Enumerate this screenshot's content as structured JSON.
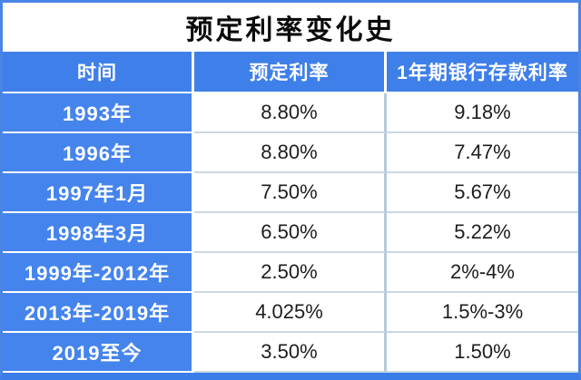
{
  "page_title": "预定利率变化史",
  "colors": {
    "frame_blue": "#4a84e6",
    "bottom_bar_blue": "#3a7ce8",
    "header_blue": "#3f7fea",
    "row_label_blue": "#4484ec",
    "grid_line_light": "#c9d8e2",
    "column_line_light": "#b7c9d7",
    "header_text": "#ffffff",
    "data_text": "#1d1d1f",
    "title_text": "#0b0b0c"
  },
  "chart_data": {
    "type": "table",
    "title": "预定利率变化史",
    "columns": [
      "时间",
      "预定利率",
      "1年期银行存款利率"
    ],
    "rows": [
      [
        "1993年",
        "8.80%",
        "9.18%"
      ],
      [
        "1996年",
        "8.80%",
        "7.47%"
      ],
      [
        "1997年1月",
        "7.50%",
        "5.67%"
      ],
      [
        "1998年3月",
        "6.50%",
        "5.22%"
      ],
      [
        "1999年-2012年",
        "2.50%",
        "2%-4%"
      ],
      [
        "2013年-2019年",
        "4.025%",
        "1.5%-3%"
      ],
      [
        "2019至今",
        "3.50%",
        "1.50%"
      ]
    ]
  }
}
